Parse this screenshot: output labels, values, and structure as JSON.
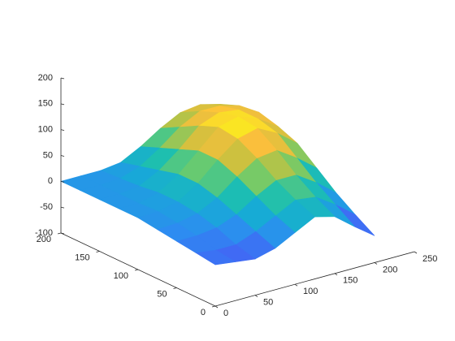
{
  "chart_data": {
    "type": "surface",
    "x": [
      0,
      25,
      50,
      75,
      100,
      125,
      150,
      175,
      200
    ],
    "y": [
      0,
      25,
      50,
      75,
      100,
      125,
      150,
      175,
      200
    ],
    "z": [
      [
        -20,
        -25,
        -30,
        -20,
        0,
        20,
        10,
        -20,
        -48
      ],
      [
        -15,
        -20,
        -20,
        -5,
        15,
        35,
        30,
        5,
        -25
      ],
      [
        -10,
        -10,
        -5,
        10,
        35,
        55,
        55,
        30,
        0
      ],
      [
        -5,
        -3,
        5,
        25,
        55,
        80,
        85,
        60,
        30
      ],
      [
        0,
        2,
        10,
        35,
        70,
        100,
        110,
        90,
        60
      ],
      [
        0,
        0,
        10,
        35,
        70,
        105,
        115,
        100,
        75
      ],
      [
        0,
        0,
        5,
        25,
        55,
        90,
        105,
        100,
        85
      ],
      [
        0,
        0,
        2,
        15,
        40,
        70,
        90,
        90,
        80
      ],
      [
        0,
        0,
        0,
        5,
        25,
        50,
        70,
        75,
        65
      ]
    ],
    "xlim": [
      0,
      250
    ],
    "xticks": [
      0,
      50,
      100,
      150,
      200,
      250
    ],
    "ylim": [
      0,
      200
    ],
    "yticks": [
      0,
      50,
      100,
      150,
      200
    ],
    "zlim": [
      -100,
      200
    ],
    "zticks": [
      -100,
      -50,
      0,
      50,
      100,
      150,
      200
    ],
    "colormap": [
      "#3e26a8",
      "#4462f5",
      "#2d8cf1",
      "#17aad6",
      "#1dbfb0",
      "#6ccb6c",
      "#c8c13f",
      "#fcbf3c",
      "#f9fb15"
    ]
  }
}
